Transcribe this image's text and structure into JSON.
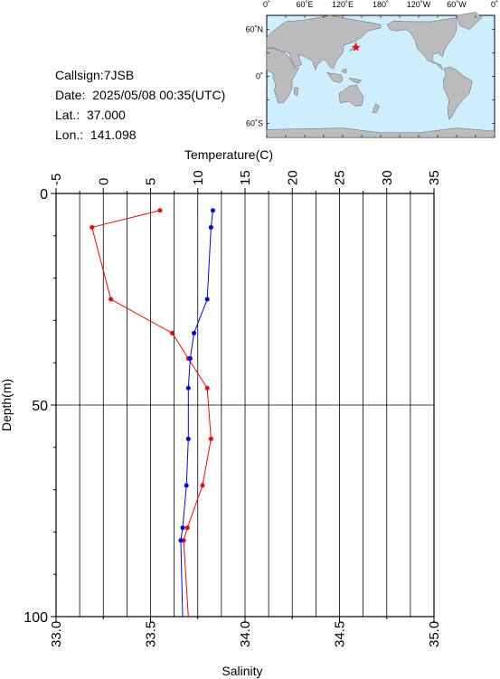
{
  "info": {
    "callsign": "Callsign:7JSB",
    "date": "Date:  2025/05/08 00:35(UTC)",
    "lat": "Lat.:  37.000",
    "lon": "Lon.:  141.098"
  },
  "map": {
    "lon_ticks": [
      "0˚",
      "60˚E",
      "120˚E",
      "180˚",
      "120˚W",
      "60˚W",
      "0˚"
    ],
    "lat_ticks": [
      "60˚N",
      "0˚",
      "60˚S"
    ],
    "station": {
      "lat": 37.0,
      "lon": 141.098
    },
    "colors": {
      "ocean": "#cceeff",
      "land": "#bbbbbb",
      "marker": "#ff0000"
    }
  },
  "chart_data": {
    "type": "line",
    "ylabel": "Depth(m)",
    "ylim": [
      0,
      100
    ],
    "y_ticks": [
      0,
      50,
      100
    ],
    "y_inverted": true,
    "top_axis": {
      "label": "Temperature(C)",
      "lim": [
        -5,
        35
      ],
      "ticks": [
        -5,
        0,
        5,
        10,
        15,
        20,
        25,
        30,
        35
      ],
      "tick_labels": [
        "-5",
        "0",
        "5",
        "10",
        "15",
        "20",
        "25",
        "30",
        "35"
      ]
    },
    "bottom_axis": {
      "label": "Salinity",
      "lim": [
        33.0,
        35.0
      ],
      "ticks": [
        33.0,
        33.5,
        34.0,
        34.5,
        35.0
      ],
      "tick_labels": [
        "33.0",
        "33.5",
        "34.0",
        "34.5",
        "35.0"
      ]
    },
    "grid": true,
    "series": [
      {
        "axis": "top",
        "color": "#ff0000",
        "points": [
          {
            "depth": 4,
            "value": 6.0
          },
          {
            "depth": 8,
            "value": -1.2
          },
          {
            "depth": 25,
            "value": 0.8
          },
          {
            "depth": 33,
            "value": 7.3
          },
          {
            "depth": 39,
            "value": 9.0
          },
          {
            "depth": 46,
            "value": 11.0
          },
          {
            "depth": 58,
            "value": 11.4
          },
          {
            "depth": 69,
            "value": 10.5
          },
          {
            "depth": 79,
            "value": 8.9
          },
          {
            "depth": 82,
            "value": 8.5
          },
          {
            "depth": 100,
            "value": 9.0
          }
        ]
      },
      {
        "axis": "bottom",
        "color": "#0000ff",
        "points": [
          {
            "depth": 4,
            "value": 33.83
          },
          {
            "depth": 8,
            "value": 33.82
          },
          {
            "depth": 25,
            "value": 33.8
          },
          {
            "depth": 33,
            "value": 33.73
          },
          {
            "depth": 39,
            "value": 33.71
          },
          {
            "depth": 46,
            "value": 33.7
          },
          {
            "depth": 58,
            "value": 33.7
          },
          {
            "depth": 69,
            "value": 33.69
          },
          {
            "depth": 79,
            "value": 33.67
          },
          {
            "depth": 82,
            "value": 33.66
          },
          {
            "depth": 100,
            "value": 33.67
          }
        ]
      }
    ]
  }
}
